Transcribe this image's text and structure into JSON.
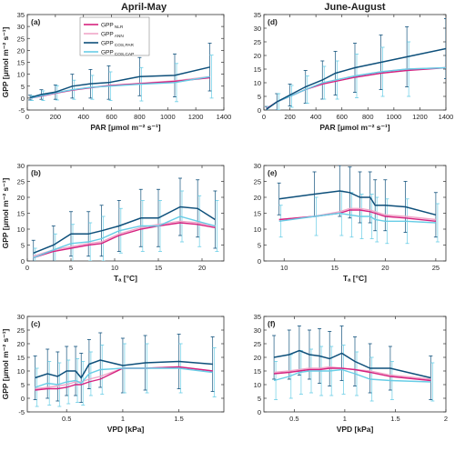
{
  "figure": {
    "col_titles": [
      "April-May",
      "June-August"
    ],
    "colors": {
      "NLR": "#d6217f",
      "ANN": "#f0a6c8",
      "COS_PAR": "#0d4f7a",
      "COS_CAP": "#67cde6"
    },
    "legend": [
      {
        "key": "NLR",
        "label": "GPP",
        "sub": "NLR"
      },
      {
        "key": "ANN",
        "label": "GPP",
        "sub": "ANN"
      },
      {
        "key": "COS_PAR",
        "label": "GPP",
        "sub": "COS,PAR"
      },
      {
        "key": "COS_CAP",
        "label": "GPP",
        "sub": "COS,CAP"
      }
    ]
  },
  "chart_data": [
    {
      "panel": "(a)",
      "type": "line",
      "xlabel": "PAR [μmol m⁻² s⁻¹]",
      "ylabel": "GPP [μmol m⁻² s⁻¹]",
      "xlim": [
        0,
        1400
      ],
      "ylim": [
        -5,
        35
      ],
      "xticks": [
        0,
        200,
        400,
        600,
        800,
        1000,
        1200,
        1400
      ],
      "yticks": [
        -5,
        0,
        5,
        10,
        15,
        20,
        25,
        30,
        35
      ],
      "x": [
        20,
        100,
        200,
        320,
        450,
        580,
        800,
        1050,
        1300
      ],
      "series": [
        {
          "key": "NLR",
          "values": [
            0,
            0.8,
            2,
            3.3,
            4.3,
            5.2,
            6,
            7,
            8.5
          ]
        },
        {
          "key": "ANN",
          "values": [
            0.2,
            1,
            2.2,
            3.5,
            4.5,
            5.3,
            6.2,
            7.2,
            9
          ]
        },
        {
          "key": "COS_PAR",
          "values": [
            0.2,
            1.5,
            2.5,
            5,
            6,
            6.5,
            9,
            9.5,
            13
          ],
          "err": [
            1,
            2,
            3,
            5,
            6,
            7,
            8,
            9,
            10
          ]
        },
        {
          "key": "COS_CAP",
          "values": [
            0,
            1,
            2.2,
            3.5,
            4.5,
            5,
            5.8,
            6.5,
            9
          ],
          "err": [
            1,
            2,
            3,
            4,
            5,
            6,
            7,
            8,
            9
          ]
        }
      ]
    },
    {
      "panel": "(d)",
      "type": "line",
      "xlabel": "PAR [μmol m⁻² s⁻¹]",
      "ylabel": "",
      "xlim": [
        0,
        1400
      ],
      "ylim": [
        0,
        35
      ],
      "xticks": [
        0,
        200,
        400,
        600,
        800,
        1000,
        1200,
        1400
      ],
      "yticks": [
        0,
        5,
        10,
        15,
        20,
        25,
        30,
        35
      ],
      "x": [
        20,
        100,
        200,
        320,
        450,
        550,
        700,
        900,
        1100,
        1400
      ],
      "series": [
        {
          "key": "NLR",
          "values": [
            0.5,
            3,
            5,
            7.5,
            9.5,
            10.5,
            12,
            13.5,
            14.5,
            15.5
          ]
        },
        {
          "key": "ANN",
          "values": [
            0.5,
            3,
            5,
            7.5,
            9.5,
            11,
            12.5,
            14,
            15,
            15.5
          ]
        },
        {
          "key": "COS_PAR",
          "values": [
            0.3,
            3,
            5.5,
            8.5,
            11,
            13.5,
            15.5,
            17.5,
            19.5,
            22.5
          ],
          "err": [
            1,
            3,
            4,
            6,
            7,
            8,
            9,
            10,
            11,
            11
          ]
        },
        {
          "key": "COS_CAP",
          "values": [
            0.3,
            3,
            5,
            7.5,
            10,
            11,
            12.5,
            14,
            15,
            15.5
          ],
          "err": [
            1,
            3,
            4,
            5,
            6,
            7,
            8,
            9,
            10,
            11
          ]
        }
      ]
    },
    {
      "panel": "(b)",
      "type": "line",
      "xlabel": "Tₐ [°C]",
      "ylabel": "GPP [μmol m⁻² s⁻¹]",
      "xlim": [
        0,
        22.5
      ],
      "ylim": [
        0,
        30
      ],
      "xticks": [
        0,
        5,
        10,
        15,
        20
      ],
      "yticks": [
        0,
        5,
        10,
        15,
        20,
        25,
        30
      ],
      "x": [
        0.7,
        3,
        5,
        7,
        8.5,
        10.5,
        13,
        15,
        17.5,
        19.5,
        21.5
      ],
      "series": [
        {
          "key": "NLR",
          "values": [
            1,
            3,
            4,
            5,
            5.5,
            8,
            10,
            11,
            12,
            11.5,
            10.5
          ]
        },
        {
          "key": "ANN",
          "values": [
            1.5,
            3.5,
            4.5,
            5.5,
            6,
            8.5,
            10.5,
            11.5,
            12.5,
            12,
            11
          ]
        },
        {
          "key": "COS_PAR",
          "values": [
            2.5,
            5,
            8.5,
            8.5,
            9.5,
            11,
            13.5,
            13.5,
            17,
            16.5,
            13
          ],
          "err": [
            4,
            6,
            7,
            7,
            8,
            8,
            9,
            9,
            9,
            9,
            9
          ]
        },
        {
          "key": "COS_CAP",
          "values": [
            1,
            3.5,
            5.5,
            6,
            7,
            9.5,
            11,
            11,
            14,
            12.5,
            11
          ],
          "err": [
            3,
            5,
            6,
            6,
            7,
            7,
            8,
            8,
            8,
            8,
            8
          ]
        }
      ]
    },
    {
      "panel": "(e)",
      "type": "line",
      "xlabel": "Tₐ [°C]",
      "ylabel": "",
      "xlim": [
        8,
        26
      ],
      "ylim": [
        0,
        30
      ],
      "xticks": [
        10,
        15,
        20,
        25
      ],
      "yticks": [
        0,
        5,
        10,
        15,
        20,
        25,
        30
      ],
      "x": [
        9.5,
        13,
        15.5,
        16.5,
        17.5,
        18.5,
        19,
        20,
        22,
        25
      ],
      "series": [
        {
          "key": "NLR",
          "values": [
            13,
            14,
            15,
            16,
            16,
            15.5,
            15,
            14,
            13.5,
            12.5
          ]
        },
        {
          "key": "ANN",
          "values": [
            13,
            14,
            15.5,
            16.5,
            16.5,
            16,
            15.5,
            14.5,
            14,
            13
          ]
        },
        {
          "key": "COS_PAR",
          "values": [
            19.5,
            21,
            22,
            21.5,
            20,
            20,
            17.5,
            17.5,
            17,
            14.5
          ],
          "err": [
            5,
            7,
            8,
            8,
            8,
            8,
            8,
            8,
            8,
            7
          ]
        },
        {
          "key": "COS_CAP",
          "values": [
            12.5,
            14,
            15,
            14.5,
            14,
            14,
            13,
            12.5,
            12.5,
            12
          ],
          "err": [
            5,
            6,
            7,
            7,
            7,
            7,
            7,
            7,
            7,
            6
          ]
        }
      ]
    },
    {
      "panel": "(c)",
      "type": "line",
      "xlabel": "VPD [kPa]",
      "ylabel": "GPP [μmol m⁻² s⁻¹]",
      "xlim": [
        0.15,
        1.9
      ],
      "ylim": [
        -5,
        30
      ],
      "xticks": [
        0.5,
        1,
        1.5
      ],
      "yticks": [
        -5,
        0,
        5,
        10,
        15,
        20,
        25,
        30
      ],
      "x": [
        0.22,
        0.33,
        0.42,
        0.5,
        0.58,
        0.63,
        0.7,
        0.8,
        1.0,
        1.2,
        1.5,
        1.8
      ],
      "series": [
        {
          "key": "NLR",
          "values": [
            3,
            3.5,
            3.5,
            4,
            5,
            5,
            6,
            7,
            11,
            11,
            11.5,
            10
          ]
        },
        {
          "key": "ANN",
          "values": [
            3.5,
            4,
            4.5,
            5,
            6,
            6,
            7,
            8,
            11,
            11,
            11.5,
            10
          ]
        },
        {
          "key": "COS_PAR",
          "values": [
            7.5,
            9,
            8,
            10,
            10,
            7.5,
            12.5,
            14,
            12,
            13,
            13.5,
            12.5
          ],
          "err": [
            8,
            9,
            9,
            9,
            9,
            9,
            9,
            10,
            10,
            10,
            10,
            10
          ]
        },
        {
          "key": "COS_CAP",
          "values": [
            4,
            5.5,
            5,
            6,
            6.5,
            5.5,
            9,
            10.5,
            11,
            11,
            11,
            9.5
          ],
          "err": [
            7,
            8,
            8,
            8,
            8,
            8,
            8,
            9,
            9,
            9,
            9,
            9
          ]
        }
      ]
    },
    {
      "panel": "(f)",
      "type": "line",
      "xlabel": "VPD [kPa]",
      "ylabel": "",
      "xlim": [
        0.2,
        2.0
      ],
      "ylim": [
        0,
        35
      ],
      "xticks": [
        0.5,
        1,
        1.5,
        2
      ],
      "yticks": [
        0,
        5,
        10,
        15,
        20,
        25,
        30,
        35
      ],
      "x": [
        0.3,
        0.45,
        0.55,
        0.65,
        0.75,
        0.85,
        0.97,
        1.1,
        1.25,
        1.45,
        1.85
      ],
      "series": [
        {
          "key": "NLR",
          "values": [
            14,
            14.5,
            15,
            15.5,
            15.5,
            16,
            16,
            15.5,
            14.5,
            13,
            11.5
          ]
        },
        {
          "key": "ANN",
          "values": [
            14.5,
            15,
            15.5,
            16,
            16,
            16.5,
            16,
            15.5,
            15,
            13.5,
            12
          ]
        },
        {
          "key": "COS_PAR",
          "values": [
            20,
            21,
            22.5,
            21,
            20.5,
            19.5,
            21.5,
            18.5,
            16,
            16,
            12.5
          ],
          "err": [
            8,
            9,
            9,
            9,
            10,
            10,
            10,
            9,
            9,
            8,
            8
          ]
        },
        {
          "key": "COS_CAP",
          "values": [
            11.5,
            13,
            14.5,
            15,
            15,
            15,
            15.5,
            14,
            12,
            11.5,
            11
          ],
          "err": [
            7,
            8,
            8,
            8,
            9,
            9,
            9,
            8,
            8,
            7,
            7
          ]
        }
      ]
    }
  ]
}
